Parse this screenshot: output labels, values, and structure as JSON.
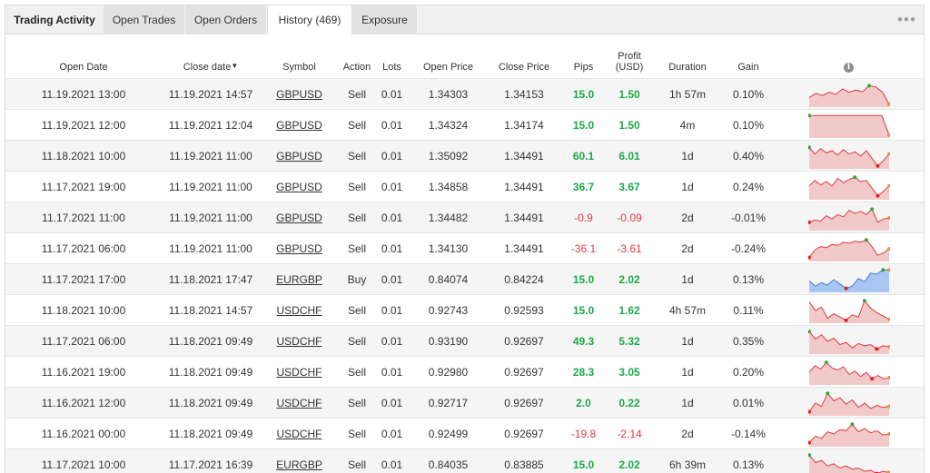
{
  "tabs": [
    {
      "label": "Trading Activity"
    },
    {
      "label": "Open Trades"
    },
    {
      "label": "Open Orders"
    },
    {
      "label": "History (469)"
    },
    {
      "label": "Exposure"
    }
  ],
  "more_icon": "more-dots-icon",
  "columns": {
    "open_date": "Open Date",
    "close_date": "Close date",
    "close_date_sort": "▼",
    "symbol": "Symbol",
    "action": "Action",
    "lots": "Lots",
    "open_price": "Open Price",
    "close_price": "Close Price",
    "pips": "Pips",
    "profit_line1": "Profit",
    "profit_line2": "(USD)",
    "duration": "Duration",
    "gain": "Gain",
    "chart_icon": "i"
  },
  "colors": {
    "positive": "#1ea84a",
    "negative": "#e0393e",
    "chart_sell": "#e0393e",
    "chart_buy": "#3a7be0"
  },
  "rows": [
    {
      "open_date": "11.19.2021 13:00",
      "close_date": "11.19.2021 14:57",
      "symbol": "GBPUSD",
      "action": "Sell",
      "lots": "0.01",
      "open_price": "1.34303",
      "close_price": "1.34153",
      "pips": "15.0",
      "profit": "1.50",
      "duration": "1h 57m",
      "gain": "0.10%",
      "spark": [
        0.35,
        0.55,
        0.45,
        0.6,
        0.5,
        0.75,
        0.6,
        0.7,
        0.62,
        0.9,
        0.85,
        0.6,
        0.05
      ]
    },
    {
      "open_date": "11.19.2021 12:00",
      "close_date": "11.19.2021 12:04",
      "symbol": "GBPUSD",
      "action": "Sell",
      "lots": "0.01",
      "open_price": "1.34324",
      "close_price": "1.34174",
      "pips": "15.0",
      "profit": "1.50",
      "duration": "4m",
      "gain": "0.10%",
      "spark": [
        0.95,
        0.95,
        0.95,
        0.95,
        0.95,
        0.95,
        0.95,
        0.95,
        0.95,
        0.95,
        0.95,
        0.05
      ]
    },
    {
      "open_date": "11.18.2021 10:00",
      "close_date": "11.19.2021 11:00",
      "symbol": "GBPUSD",
      "action": "Sell",
      "lots": "0.01",
      "open_price": "1.35092",
      "close_price": "1.34491",
      "pips": "60.1",
      "profit": "6.01",
      "duration": "1d",
      "gain": "0.40%",
      "spark": [
        0.9,
        0.6,
        0.85,
        0.65,
        0.75,
        0.55,
        0.8,
        0.6,
        0.7,
        0.5,
        0.75,
        0.4,
        0.05,
        0.3,
        0.6
      ]
    },
    {
      "open_date": "11.17.2021 19:00",
      "close_date": "11.19.2021 11:00",
      "symbol": "GBPUSD",
      "action": "Sell",
      "lots": "0.01",
      "open_price": "1.34858",
      "close_price": "1.34491",
      "pips": "36.7",
      "profit": "3.67",
      "duration": "1d",
      "gain": "0.24%",
      "spark": [
        0.55,
        0.8,
        0.6,
        0.75,
        0.55,
        0.9,
        0.7,
        0.85,
        0.95,
        0.75,
        0.8,
        0.45,
        0.1,
        0.3,
        0.55
      ]
    },
    {
      "open_date": "11.17.2021 11:00",
      "close_date": "11.19.2021 11:00",
      "symbol": "GBPUSD",
      "action": "Sell",
      "lots": "0.01",
      "open_price": "1.34482",
      "close_price": "1.34491",
      "pips": "-0.9",
      "profit": "-0.09",
      "duration": "2d",
      "gain": "-0.01%",
      "spark": [
        0.3,
        0.4,
        0.35,
        0.6,
        0.45,
        0.65,
        0.55,
        0.85,
        0.7,
        0.8,
        0.65,
        0.9,
        0.3,
        0.45,
        0.5
      ]
    },
    {
      "open_date": "11.17.2021 06:00",
      "close_date": "11.19.2021 11:00",
      "symbol": "GBPUSD",
      "action": "Sell",
      "lots": "0.01",
      "open_price": "1.34130",
      "close_price": "1.34491",
      "pips": "-36.1",
      "profit": "-3.61",
      "duration": "2d",
      "gain": "-0.24%",
      "spark": [
        0.1,
        0.45,
        0.6,
        0.55,
        0.7,
        0.65,
        0.8,
        0.75,
        0.85,
        0.8,
        0.9,
        0.6,
        0.2,
        0.3,
        0.5
      ]
    },
    {
      "open_date": "11.17.2021 17:00",
      "close_date": "11.18.2021 17:47",
      "symbol": "EURGBP",
      "action": "Buy",
      "lots": "0.01",
      "open_price": "0.84074",
      "close_price": "0.84224",
      "pips": "15.0",
      "profit": "2.02",
      "duration": "1d",
      "gain": "0.13%",
      "spark": [
        0.45,
        0.2,
        0.35,
        0.25,
        0.5,
        0.3,
        0.1,
        0.2,
        0.55,
        0.4,
        0.8,
        0.75,
        0.95,
        0.95
      ]
    },
    {
      "open_date": "11.18.2021 10:00",
      "close_date": "11.18.2021 14:57",
      "symbol": "USDCHF",
      "action": "Sell",
      "lots": "0.01",
      "open_price": "0.92743",
      "close_price": "0.92593",
      "pips": "15.0",
      "profit": "1.62",
      "duration": "4h 57m",
      "gain": "0.11%",
      "spark": [
        0.9,
        0.5,
        0.65,
        0.15,
        0.35,
        0.2,
        0.05,
        0.3,
        0.2,
        0.95,
        0.6,
        0.4,
        0.25,
        0.1
      ]
    },
    {
      "open_date": "11.17.2021 06:00",
      "close_date": "11.18.2021 09:49",
      "symbol": "USDCHF",
      "action": "Sell",
      "lots": "0.01",
      "open_price": "0.93190",
      "close_price": "0.92697",
      "pips": "49.3",
      "profit": "5.32",
      "duration": "1d",
      "gain": "0.35%",
      "spark": [
        0.95,
        0.6,
        0.8,
        0.5,
        0.65,
        0.35,
        0.45,
        0.2,
        0.4,
        0.3,
        0.35,
        0.15,
        0.3,
        0.25
      ]
    },
    {
      "open_date": "11.16.2021 19:00",
      "close_date": "11.18.2021 09:49",
      "symbol": "USDCHF",
      "action": "Sell",
      "lots": "0.01",
      "open_price": "0.92980",
      "close_price": "0.92697",
      "pips": "28.3",
      "profit": "3.05",
      "duration": "1d",
      "gain": "0.20%",
      "spark": [
        0.5,
        0.8,
        0.65,
        0.95,
        0.7,
        0.6,
        0.75,
        0.4,
        0.55,
        0.3,
        0.5,
        0.2,
        0.35,
        0.2,
        0.25
      ]
    },
    {
      "open_date": "11.16.2021 12:00",
      "close_date": "11.18.2021 09:49",
      "symbol": "USDCHF",
      "action": "Sell",
      "lots": "0.01",
      "open_price": "0.92717",
      "close_price": "0.92697",
      "pips": "2.0",
      "profit": "0.22",
      "duration": "1d",
      "gain": "0.01%",
      "spark": [
        0.1,
        0.5,
        0.35,
        0.95,
        0.6,
        0.75,
        0.45,
        0.65,
        0.3,
        0.5,
        0.25,
        0.4,
        0.3,
        0.35
      ]
    },
    {
      "open_date": "11.16.2021 00:00",
      "close_date": "11.18.2021 09:49",
      "symbol": "USDCHF",
      "action": "Sell",
      "lots": "0.01",
      "open_price": "0.92499",
      "close_price": "0.92697",
      "pips": "-19.8",
      "profit": "-2.14",
      "duration": "2d",
      "gain": "-0.14%",
      "spark": [
        0.1,
        0.4,
        0.3,
        0.6,
        0.5,
        0.7,
        0.65,
        0.95,
        0.6,
        0.75,
        0.55,
        0.65,
        0.45,
        0.5
      ]
    },
    {
      "open_date": "11.17.2021 10:00",
      "close_date": "11.17.2021 16:39",
      "symbol": "EURGBP",
      "action": "Sell",
      "lots": "0.01",
      "open_price": "0.84035",
      "close_price": "0.83885",
      "pips": "15.0",
      "profit": "2.02",
      "duration": "6h 39m",
      "gain": "0.13%",
      "spark": [
        0.95,
        0.6,
        0.7,
        0.45,
        0.55,
        0.35,
        0.45,
        0.3,
        0.35,
        0.2,
        0.25,
        0.1,
        0.2,
        0.15
      ]
    }
  ]
}
